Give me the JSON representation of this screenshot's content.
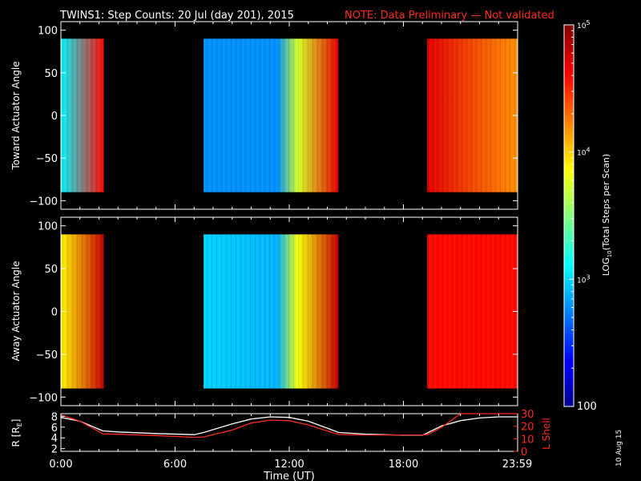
{
  "title_text": "TWINS1: Step Counts: 20 Jul (day 201), 2015",
  "note_text": "NOTE: Data Preliminary — Not validated",
  "date_stamp": "10 Aug 15",
  "colors": {
    "background": "#000000",
    "note": "#ff2a1e",
    "orbit_line": "#ffffff",
    "lshell_line": "#ff2a1e"
  },
  "chart_data": [
    {
      "type": "heatmap",
      "ylabel": "Toward Actuator Angle",
      "xlim_hours": [
        0,
        24
      ],
      "ylim": [
        -110,
        110
      ],
      "y_data_range": [
        -90,
        90
      ],
      "yticks": [
        "100",
        "50",
        "0",
        "−50",
        "−100"
      ],
      "ytick_values": [
        100,
        50,
        0,
        -50,
        -100
      ],
      "data_intervals_ut": [
        {
          "start": "00:00",
          "end": "02:15",
          "start_h": 0.0,
          "end_h": 2.25,
          "log10_start": 3.1,
          "log10_end": 4.6
        },
        {
          "start": "07:30",
          "end": "14:35",
          "start_h": 7.5,
          "end_h": 14.58,
          "log10_start": 2.8,
          "log10_mid": 2.8,
          "log10_end": 4.7
        },
        {
          "start": "19:15",
          "end": "23:59",
          "start_h": 19.25,
          "end_h": 23.98,
          "log10_start": 4.7,
          "log10_end": 4.2
        }
      ],
      "value_unit": "log10 total steps per scan"
    },
    {
      "type": "heatmap",
      "ylabel": "Away Actuator Angle",
      "xlim_hours": [
        0,
        24
      ],
      "ylim": [
        -110,
        110
      ],
      "y_data_range": [
        -90,
        90
      ],
      "yticks": [
        "100",
        "50",
        "0",
        "−50",
        "−100"
      ],
      "ytick_values": [
        100,
        50,
        0,
        -50,
        -100
      ],
      "data_intervals_ut": [
        {
          "start": "00:00",
          "end": "02:15",
          "start_h": 0.0,
          "end_h": 2.25,
          "log10_start": 3.9,
          "log10_end": 4.8
        },
        {
          "start": "07:30",
          "end": "14:35",
          "start_h": 7.5,
          "end_h": 14.58,
          "log10_start": 3.0,
          "log10_mid": 2.9,
          "log10_end": 4.8
        },
        {
          "start": "19:15",
          "end": "23:59",
          "start_h": 19.25,
          "end_h": 23.98,
          "log10_start": 4.6,
          "log10_end": 4.6
        }
      ],
      "value_unit": "log10 total steps per scan"
    },
    {
      "type": "line",
      "ylabel": "R [R",
      "ylabel_sub": "E",
      "ylabel_close": "]",
      "ylabel_right": "L Shell",
      "ylim": [
        1.5,
        8.5
      ],
      "yticks_left": [
        "8",
        "6",
        "4",
        "2"
      ],
      "ytick_values_left": [
        8,
        6,
        4,
        2
      ],
      "ylim_right": [
        0,
        30
      ],
      "yticks_right": [
        "30",
        "20",
        "10",
        "0"
      ],
      "ytick_values_right": [
        30,
        20,
        10,
        0
      ],
      "x_hours": [
        0,
        1,
        2.2,
        3,
        5,
        7,
        7.5,
        9,
        10,
        11,
        12,
        13,
        14,
        14.6,
        16,
        18,
        19,
        19.3,
        20,
        21,
        22,
        23,
        24
      ],
      "series": [
        {
          "name": "R",
          "axis": "left",
          "values": [
            7.8,
            7.1,
            5.3,
            5.1,
            4.8,
            4.6,
            5.0,
            6.6,
            7.5,
            7.9,
            7.8,
            7.1,
            5.8,
            5.0,
            4.7,
            4.5,
            4.5,
            5.0,
            6.2,
            7.2,
            7.7,
            7.9,
            7.9
          ]
        },
        {
          "name": "L Shell",
          "axis": "right",
          "values": [
            29,
            24,
            14,
            13.6,
            12.6,
            11.2,
            11.4,
            17,
            22.6,
            24.8,
            24.4,
            21,
            16.2,
            13.4,
            13,
            13,
            13,
            13.6,
            19,
            31,
            31,
            31,
            31
          ]
        }
      ],
      "xlabel": "Time (UT)",
      "xticks": [
        "0:00",
        "6:00",
        "12:00",
        "18:00",
        "23:59"
      ],
      "xtick_values": [
        0,
        6,
        12,
        18,
        23.98
      ]
    }
  ],
  "colorbar": {
    "label_pre": "LOG",
    "label_sub": "10",
    "label_post": "(Total Steps per Scan)",
    "log10_min": 2,
    "log10_max": 5,
    "tick_labels": [
      "10",
      "5",
      "10",
      "4",
      "10",
      "3",
      "100"
    ],
    "tick_values": [
      5,
      4,
      3,
      2
    ]
  }
}
